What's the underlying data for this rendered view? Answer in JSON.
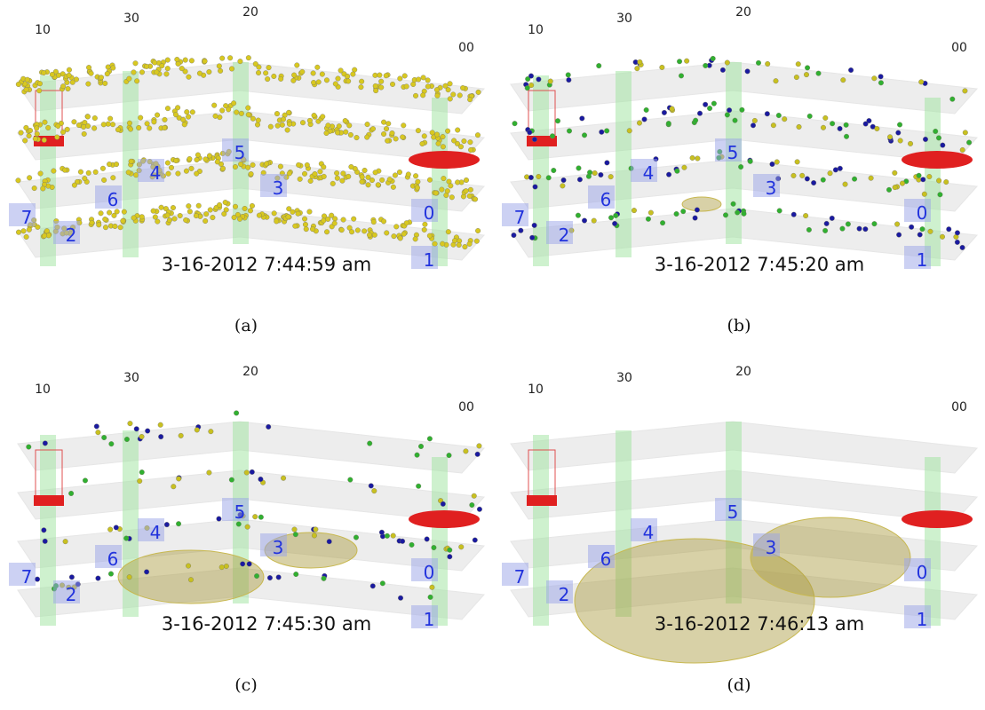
{
  "panels": [
    {
      "corner_labels": [
        "10",
        "30",
        "20",
        "00"
      ],
      "room_labels": [
        "7",
        "2",
        "6",
        "4",
        "5",
        "3",
        "0",
        "1"
      ],
      "timestamp": "3-16-2012 7:44:59 am",
      "caption": "(a)"
    },
    {
      "corner_labels": [
        "10",
        "30",
        "20",
        "00"
      ],
      "room_labels": [
        "7",
        "2",
        "6",
        "4",
        "5",
        "3",
        "0",
        "1"
      ],
      "timestamp": "3-16-2012 7:45:20 am",
      "caption": "(b)"
    },
    {
      "corner_labels": [
        "10",
        "30",
        "20",
        "00"
      ],
      "room_labels": [
        "7",
        "2",
        "6",
        "4",
        "5",
        "3",
        "0",
        "1"
      ],
      "timestamp": "3-16-2012 7:45:30 am",
      "caption": "(c)"
    },
    {
      "corner_labels": [
        "10",
        "30",
        "20",
        "00"
      ],
      "room_labels": [
        "7",
        "2",
        "6",
        "4",
        "5",
        "3",
        "0",
        "1"
      ],
      "timestamp": "3-16-2012 7:46:13 am",
      "caption": "(d)"
    }
  ]
}
